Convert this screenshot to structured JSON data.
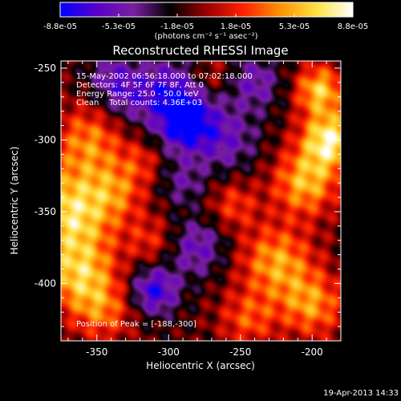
{
  "colorbar": {
    "tick_labels": [
      "-8.8e-05",
      "-5.3e-05",
      "-1.8e-05",
      "1.8e-05",
      "5.3e-05",
      "8.8e-05"
    ],
    "unit_label": "(photons cm⁻² s⁻¹ asec⁻²)",
    "colors": [
      "#0000ff",
      "#5a00c8",
      "#7a1fa0",
      "#000000",
      "#9a0000",
      "#ff2000",
      "#ff9000",
      "#ffe040",
      "#ffffff"
    ]
  },
  "chart_data": {
    "type": "heatmap",
    "title": "Reconstructed RHESSI Image",
    "xlabel": "Heliocentric X (arcsec)",
    "ylabel": "Heliocentric Y (arcsec)",
    "xlim": [
      -375,
      -180
    ],
    "ylim": [
      -440,
      -245
    ],
    "x_ticks": [
      -350,
      -300,
      -250,
      -200
    ],
    "y_ticks": [
      -250,
      -300,
      -350,
      -400
    ],
    "x_tick_labels": [
      "-350",
      "-300",
      "-250",
      "-200"
    ],
    "y_tick_labels": [
      "-250",
      "-300",
      "-350",
      "-400"
    ],
    "value_range": [
      -8.8e-05,
      8.8e-05
    ],
    "annotations": [
      "15-May-2002 06:56:18.000 to 07:02:18.000",
      "Detectors: 4F 5F 6F 7F 8F, Att 0",
      "Energy Range: 25.0 - 50.0 keV",
      "Clean    Total counts: 4.36E+03"
    ],
    "peak_label": "Position of Peak = [-188,-300]",
    "peak": [
      -188,
      -300
    ],
    "blobs": [
      {
        "x": -368,
        "y": -350,
        "v": 8e-05,
        "s": 22
      },
      {
        "x": -362,
        "y": -395,
        "v": 6.5e-05,
        "s": 18
      },
      {
        "x": -355,
        "y": -300,
        "v": 5e-05,
        "s": 18
      },
      {
        "x": -345,
        "y": -420,
        "v": 4e-05,
        "s": 15
      },
      {
        "x": -335,
        "y": -335,
        "v": 3.5e-05,
        "s": 14
      },
      {
        "x": -312,
        "y": -370,
        "v": 3e-05,
        "s": 12
      },
      {
        "x": -318,
        "y": -315,
        "v": 2.5e-05,
        "s": 10
      },
      {
        "x": -188,
        "y": -300,
        "v": 8.8e-05,
        "s": 14
      },
      {
        "x": -195,
        "y": -265,
        "v": 7e-05,
        "s": 12
      },
      {
        "x": -205,
        "y": -330,
        "v": 6.5e-05,
        "s": 16
      },
      {
        "x": -225,
        "y": -385,
        "v": 6e-05,
        "s": 18
      },
      {
        "x": -200,
        "y": -415,
        "v": 5.5e-05,
        "s": 16
      },
      {
        "x": -245,
        "y": -425,
        "v": 4e-05,
        "s": 14
      },
      {
        "x": -255,
        "y": -345,
        "v": 3.5e-05,
        "s": 12
      },
      {
        "x": -270,
        "y": -255,
        "v": 2.5e-05,
        "s": 10
      },
      {
        "x": -288,
        "y": -288,
        "v": -8e-05,
        "s": 14
      },
      {
        "x": -300,
        "y": -265,
        "v": -5e-05,
        "s": 16
      },
      {
        "x": -310,
        "y": -405,
        "v": -6.5e-05,
        "s": 12
      },
      {
        "x": -260,
        "y": -300,
        "v": -4e-05,
        "s": 16
      },
      {
        "x": -330,
        "y": -270,
        "v": -3.5e-05,
        "s": 14
      },
      {
        "x": -280,
        "y": -375,
        "v": -4.5e-05,
        "s": 14
      },
      {
        "x": -340,
        "y": -255,
        "v": -3e-05,
        "s": 12
      },
      {
        "x": -290,
        "y": -330,
        "v": -3e-05,
        "s": 12
      },
      {
        "x": -240,
        "y": -260,
        "v": -4e-05,
        "s": 14
      }
    ]
  },
  "footer": {
    "timestamp": "19-Apr-2013 14:33"
  }
}
